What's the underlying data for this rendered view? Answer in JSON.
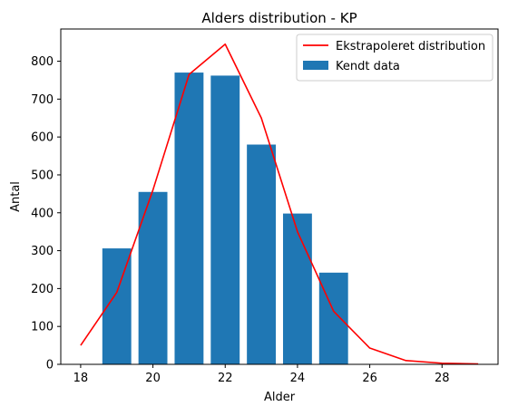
{
  "chart_data": {
    "type": "bar",
    "title": "Alders distribution - KP",
    "xlabel": "Alder",
    "ylabel": "Antal",
    "xlim": [
      17.45,
      29.55
    ],
    "ylim": [
      0,
      885
    ],
    "x_ticks": [
      18,
      20,
      22,
      24,
      26,
      28
    ],
    "y_ticks": [
      0,
      100,
      200,
      300,
      400,
      500,
      600,
      700,
      800
    ],
    "grid": false,
    "legend_position": "top-right",
    "series": [
      {
        "name": "Kendt data",
        "type": "bar",
        "color": "#1f77b4",
        "x": [
          19,
          20,
          21,
          22,
          23,
          24,
          25
        ],
        "values": [
          306,
          455,
          770,
          762,
          580,
          398,
          242
        ]
      },
      {
        "name": "Ekstrapoleret distribution",
        "type": "line",
        "color": "#ff0000",
        "x": [
          18,
          19,
          20,
          21,
          22,
          23,
          24,
          25,
          26,
          27,
          28,
          29
        ],
        "values": [
          50,
          190,
          460,
          765,
          845,
          650,
          350,
          140,
          43,
          10,
          3,
          1
        ]
      }
    ]
  }
}
